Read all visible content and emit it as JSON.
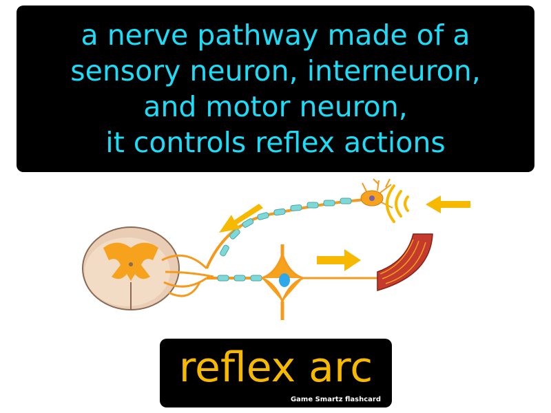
{
  "definition": {
    "lines": [
      "a nerve pathway made of a",
      "sensory neuron, interneuron,",
      "and motor neuron,",
      "it controls reflex actions"
    ]
  },
  "term": "reflex arc",
  "brand": "Game  Smartz  flashcard",
  "colors": {
    "definition_text": "#1ddcf7",
    "term_text": "#f7b900",
    "panel": "#000000",
    "arrow": "#f7b900",
    "nerve": "#f59a1c"
  }
}
